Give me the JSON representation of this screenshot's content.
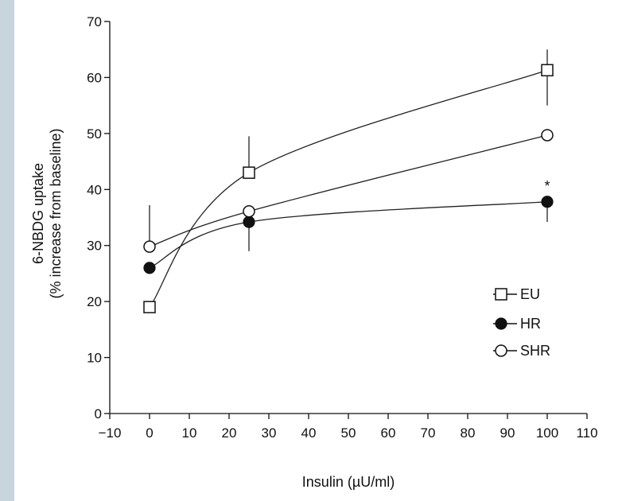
{
  "chart_data": {
    "type": "line",
    "title": "",
    "xlabel": "Insulin (µU/ml)",
    "ylabel_line1": "6-NBDG uptake",
    "ylabel_line2": "(% increase from baseline)",
    "xlim": [
      -10,
      110
    ],
    "ylim": [
      0,
      70
    ],
    "x_ticks": [
      -10,
      0,
      10,
      20,
      30,
      40,
      50,
      60,
      70,
      80,
      90,
      100,
      110
    ],
    "x_tick_labels": [
      "−10",
      "0",
      "10",
      "20",
      "30",
      "40",
      "50",
      "60",
      "70",
      "80",
      "90",
      "100",
      "110"
    ],
    "y_ticks": [
      0,
      10,
      20,
      30,
      40,
      50,
      60,
      70
    ],
    "y_tick_labels": [
      "0",
      "10",
      "20",
      "30",
      "40",
      "50",
      "60",
      "70"
    ],
    "grid": false,
    "legend_position": "right",
    "x": [
      0,
      25,
      100
    ],
    "series": [
      {
        "name": "EU",
        "marker": "open-square",
        "values": [
          19,
          43,
          61.3
        ],
        "error_up": [
          null,
          49.5,
          65
        ],
        "error_down": [
          null,
          null,
          55
        ]
      },
      {
        "name": "HR",
        "marker": "filled-circle",
        "values": [
          26,
          34.2,
          37.8
        ],
        "error_up": [
          null,
          null,
          null
        ],
        "error_down": [
          null,
          29,
          34.2
        ]
      },
      {
        "name": "SHR",
        "marker": "open-circle",
        "values": [
          29.8,
          36.1,
          49.7
        ],
        "error_up": [
          37.2,
          null,
          null
        ],
        "error_down": [
          null,
          null,
          null
        ]
      }
    ],
    "annotations": [
      {
        "text": "*",
        "x": 100,
        "series": "HR"
      }
    ]
  }
}
